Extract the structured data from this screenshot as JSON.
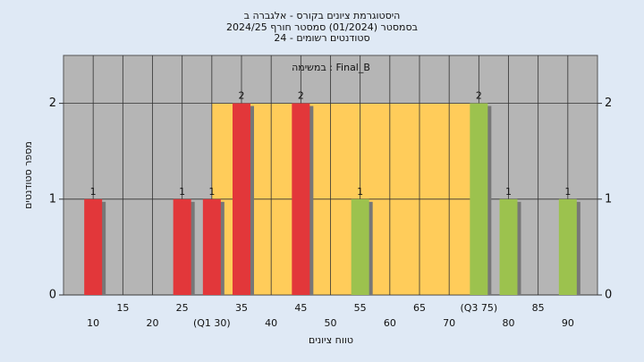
{
  "chart_data": {
    "type": "bar",
    "title": "היסטוגרמת ציונים בקורס - אלגברה ב",
    "subtitle": "בסמסטר  (01/2024)  סמסטר חורף 2024/25",
    "subtitle2": "סטודנטים רשומים - 24",
    "annotation": "Final_B : במשימה",
    "x_label": "טווח ציונים",
    "y_label": "מספר סטודנטים",
    "x": [
      10,
      25,
      30,
      35,
      45,
      55,
      75,
      80,
      90
    ],
    "values": [
      1,
      1,
      1,
      2,
      2,
      1,
      2,
      1,
      1
    ],
    "colors": [
      "#e2373a",
      "#e2373a",
      "#e2373a",
      "#e2373a",
      "#e2373a",
      "#9cc24e",
      "#9cc24e",
      "#9cc24e",
      "#9cc24e"
    ],
    "quartiles": [
      30,
      75
    ],
    "quartile_color": "#ffcc5a",
    "xlim": [
      5,
      95
    ],
    "xticks": [
      10,
      15,
      20,
      25,
      {
        "value": 30,
        "label": "(Q1 30)"
      },
      35,
      40,
      45,
      50,
      55,
      60,
      65,
      70,
      {
        "value": 75,
        "label": "(Q3 75)"
      },
      80,
      85,
      90
    ],
    "ylim": [
      0,
      2.5
    ],
    "yticks": [
      0,
      1,
      2
    ],
    "grid": true
  }
}
